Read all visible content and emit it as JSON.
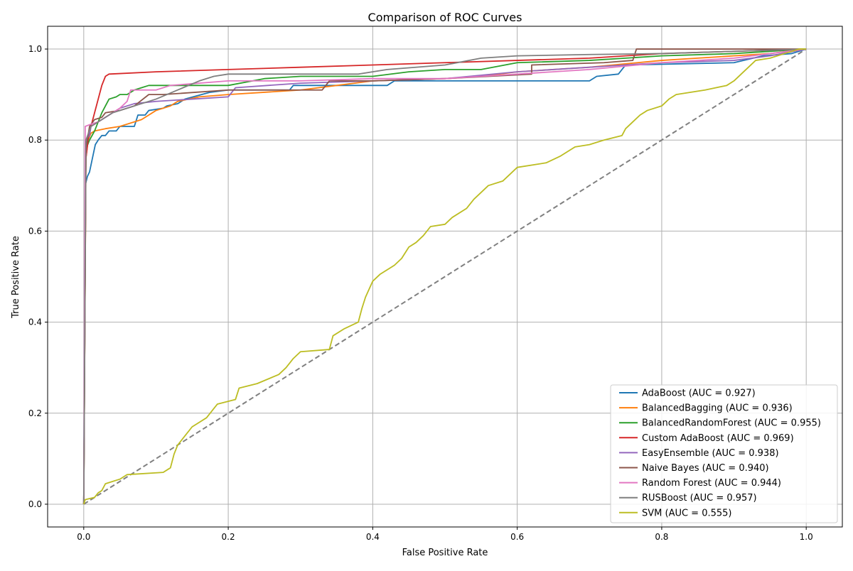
{
  "chart_data": {
    "type": "line",
    "title": "Comparison of ROC Curves",
    "xlabel": "False Positive Rate",
    "ylabel": "True Positive Rate",
    "xlim": [
      -0.05,
      1.05
    ],
    "ylim": [
      -0.05,
      1.05
    ],
    "x_ticks": [
      "0.0",
      "0.2",
      "0.4",
      "0.6",
      "0.8",
      "1.0"
    ],
    "y_ticks": [
      "0.0",
      "0.2",
      "0.4",
      "0.6",
      "0.8",
      "1.0"
    ],
    "grid": true,
    "legend_position": "lower-right",
    "series": [
      {
        "name": "AdaBoost (AUC = 0.927)",
        "color": "#1f77b4",
        "points": [
          [
            0,
            0
          ],
          [
            0.002,
            0.7
          ],
          [
            0.005,
            0.72
          ],
          [
            0.008,
            0.73
          ],
          [
            0.012,
            0.76
          ],
          [
            0.016,
            0.79
          ],
          [
            0.02,
            0.8
          ],
          [
            0.025,
            0.81
          ],
          [
            0.03,
            0.81
          ],
          [
            0.035,
            0.82
          ],
          [
            0.045,
            0.82
          ],
          [
            0.05,
            0.83
          ],
          [
            0.07,
            0.83
          ],
          [
            0.075,
            0.855
          ],
          [
            0.085,
            0.855
          ],
          [
            0.09,
            0.865
          ],
          [
            0.11,
            0.87
          ],
          [
            0.115,
            0.875
          ],
          [
            0.13,
            0.88
          ],
          [
            0.14,
            0.89
          ],
          [
            0.175,
            0.905
          ],
          [
            0.2,
            0.91
          ],
          [
            0.285,
            0.91
          ],
          [
            0.29,
            0.92
          ],
          [
            0.42,
            0.92
          ],
          [
            0.43,
            0.93
          ],
          [
            0.52,
            0.93
          ],
          [
            0.7,
            0.93
          ],
          [
            0.71,
            0.94
          ],
          [
            0.74,
            0.945
          ],
          [
            0.75,
            0.965
          ],
          [
            0.9,
            0.97
          ],
          [
            0.94,
            0.985
          ],
          [
            0.98,
            0.99
          ],
          [
            1,
            1
          ]
        ]
      },
      {
        "name": "BalancedBagging (AUC = 0.936)",
        "color": "#ff7f0e",
        "points": [
          [
            0,
            0
          ],
          [
            0.003,
            0.76
          ],
          [
            0.006,
            0.8
          ],
          [
            0.01,
            0.815
          ],
          [
            0.015,
            0.82
          ],
          [
            0.03,
            0.825
          ],
          [
            0.05,
            0.83
          ],
          [
            0.07,
            0.84
          ],
          [
            0.08,
            0.845
          ],
          [
            0.09,
            0.855
          ],
          [
            0.1,
            0.865
          ],
          [
            0.12,
            0.875
          ],
          [
            0.13,
            0.885
          ],
          [
            0.16,
            0.895
          ],
          [
            0.2,
            0.9
          ],
          [
            0.25,
            0.905
          ],
          [
            0.3,
            0.91
          ],
          [
            0.35,
            0.92
          ],
          [
            0.4,
            0.93
          ],
          [
            0.5,
            0.935
          ],
          [
            0.55,
            0.94
          ],
          [
            0.6,
            0.95
          ],
          [
            0.7,
            0.96
          ],
          [
            0.8,
            0.975
          ],
          [
            0.9,
            0.985
          ],
          [
            0.95,
            0.99
          ],
          [
            1,
            1
          ]
        ]
      },
      {
        "name": "BalancedRandomForest (AUC = 0.955)",
        "color": "#2ca02c",
        "points": [
          [
            0,
            0
          ],
          [
            0.003,
            0.78
          ],
          [
            0.008,
            0.8
          ],
          [
            0.015,
            0.82
          ],
          [
            0.02,
            0.84
          ],
          [
            0.025,
            0.86
          ],
          [
            0.03,
            0.875
          ],
          [
            0.035,
            0.89
          ],
          [
            0.045,
            0.895
          ],
          [
            0.05,
            0.9
          ],
          [
            0.06,
            0.9
          ],
          [
            0.07,
            0.91
          ],
          [
            0.08,
            0.915
          ],
          [
            0.09,
            0.92
          ],
          [
            0.2,
            0.92
          ],
          [
            0.25,
            0.935
          ],
          [
            0.3,
            0.94
          ],
          [
            0.4,
            0.94
          ],
          [
            0.45,
            0.95
          ],
          [
            0.5,
            0.955
          ],
          [
            0.55,
            0.955
          ],
          [
            0.6,
            0.97
          ],
          [
            0.7,
            0.975
          ],
          [
            0.8,
            0.985
          ],
          [
            0.9,
            0.99
          ],
          [
            1,
            1
          ]
        ]
      },
      {
        "name": "Custom AdaBoost (AUC = 0.969)",
        "color": "#d62728",
        "points": [
          [
            0,
            0
          ],
          [
            0.003,
            0.76
          ],
          [
            0.006,
            0.8
          ],
          [
            0.01,
            0.83
          ],
          [
            0.015,
            0.86
          ],
          [
            0.02,
            0.89
          ],
          [
            0.025,
            0.92
          ],
          [
            0.03,
            0.94
          ],
          [
            0.035,
            0.945
          ],
          [
            0.1,
            0.95
          ],
          [
            0.2,
            0.955
          ],
          [
            0.3,
            0.96
          ],
          [
            0.4,
            0.965
          ],
          [
            0.5,
            0.97
          ],
          [
            0.6,
            0.975
          ],
          [
            0.7,
            0.98
          ],
          [
            0.8,
            0.99
          ],
          [
            0.9,
            0.995
          ],
          [
            1,
            1
          ]
        ]
      },
      {
        "name": "EasyEnsemble (AUC = 0.938)",
        "color": "#9467bd",
        "points": [
          [
            0,
            0
          ],
          [
            0.003,
            0.8
          ],
          [
            0.008,
            0.81
          ],
          [
            0.01,
            0.83
          ],
          [
            0.02,
            0.84
          ],
          [
            0.03,
            0.85
          ],
          [
            0.05,
            0.87
          ],
          [
            0.07,
            0.88
          ],
          [
            0.1,
            0.885
          ],
          [
            0.15,
            0.89
          ],
          [
            0.2,
            0.895
          ],
          [
            0.21,
            0.915
          ],
          [
            0.3,
            0.925
          ],
          [
            0.4,
            0.93
          ],
          [
            0.5,
            0.935
          ],
          [
            0.6,
            0.95
          ],
          [
            0.7,
            0.96
          ],
          [
            0.8,
            0.97
          ],
          [
            0.9,
            0.975
          ],
          [
            0.95,
            0.985
          ],
          [
            1,
            1
          ]
        ]
      },
      {
        "name": "Naive Bayes (AUC = 0.940)",
        "color": "#8c564b",
        "points": [
          [
            0,
            0
          ],
          [
            0.003,
            0.78
          ],
          [
            0.008,
            0.83
          ],
          [
            0.015,
            0.845
          ],
          [
            0.025,
            0.85
          ],
          [
            0.03,
            0.86
          ],
          [
            0.05,
            0.865
          ],
          [
            0.07,
            0.875
          ],
          [
            0.09,
            0.9
          ],
          [
            0.11,
            0.9
          ],
          [
            0.2,
            0.91
          ],
          [
            0.33,
            0.91
          ],
          [
            0.34,
            0.93
          ],
          [
            0.4,
            0.93
          ],
          [
            0.5,
            0.935
          ],
          [
            0.62,
            0.945
          ],
          [
            0.62,
            0.965
          ],
          [
            0.72,
            0.97
          ],
          [
            0.76,
            0.975
          ],
          [
            0.765,
            1.0
          ],
          [
            1,
            1
          ]
        ]
      },
      {
        "name": "Random Forest (AUC = 0.944)",
        "color": "#e377c2",
        "points": [
          [
            0,
            0
          ],
          [
            0.002,
            0.83
          ],
          [
            0.01,
            0.835
          ],
          [
            0.02,
            0.84
          ],
          [
            0.03,
            0.85
          ],
          [
            0.04,
            0.86
          ],
          [
            0.05,
            0.87
          ],
          [
            0.06,
            0.885
          ],
          [
            0.065,
            0.91
          ],
          [
            0.1,
            0.91
          ],
          [
            0.12,
            0.92
          ],
          [
            0.2,
            0.93
          ],
          [
            0.3,
            0.93
          ],
          [
            0.4,
            0.935
          ],
          [
            0.5,
            0.935
          ],
          [
            0.6,
            0.945
          ],
          [
            0.7,
            0.955
          ],
          [
            0.8,
            0.97
          ],
          [
            0.9,
            0.98
          ],
          [
            0.95,
            0.99
          ],
          [
            1,
            1
          ]
        ]
      },
      {
        "name": "RUSBoost (AUC = 0.957)",
        "color": "#7f7f7f",
        "points": [
          [
            0,
            0
          ],
          [
            0.003,
            0.8
          ],
          [
            0.01,
            0.83
          ],
          [
            0.02,
            0.84
          ],
          [
            0.04,
            0.86
          ],
          [
            0.06,
            0.87
          ],
          [
            0.08,
            0.88
          ],
          [
            0.1,
            0.89
          ],
          [
            0.13,
            0.91
          ],
          [
            0.16,
            0.93
          ],
          [
            0.18,
            0.94
          ],
          [
            0.2,
            0.945
          ],
          [
            0.3,
            0.945
          ],
          [
            0.38,
            0.945
          ],
          [
            0.42,
            0.955
          ],
          [
            0.5,
            0.965
          ],
          [
            0.55,
            0.98
          ],
          [
            0.6,
            0.985
          ],
          [
            0.7,
            0.988
          ],
          [
            0.8,
            0.99
          ],
          [
            0.9,
            0.995
          ],
          [
            1,
            1
          ]
        ]
      },
      {
        "name": "SVM (AUC = 0.555)",
        "color": "#bcbd22",
        "points": [
          [
            0,
            0
          ],
          [
            0.002,
            0.01
          ],
          [
            0.015,
            0.015
          ],
          [
            0.02,
            0.025
          ],
          [
            0.025,
            0.03
          ],
          [
            0.03,
            0.045
          ],
          [
            0.04,
            0.05
          ],
          [
            0.05,
            0.055
          ],
          [
            0.06,
            0.065
          ],
          [
            0.11,
            0.07
          ],
          [
            0.12,
            0.08
          ],
          [
            0.125,
            0.11
          ],
          [
            0.13,
            0.13
          ],
          [
            0.14,
            0.15
          ],
          [
            0.15,
            0.17
          ],
          [
            0.16,
            0.18
          ],
          [
            0.17,
            0.19
          ],
          [
            0.18,
            0.21
          ],
          [
            0.185,
            0.22
          ],
          [
            0.21,
            0.23
          ],
          [
            0.215,
            0.255
          ],
          [
            0.24,
            0.265
          ],
          [
            0.27,
            0.285
          ],
          [
            0.28,
            0.3
          ],
          [
            0.29,
            0.32
          ],
          [
            0.3,
            0.335
          ],
          [
            0.34,
            0.34
          ],
          [
            0.345,
            0.37
          ],
          [
            0.36,
            0.385
          ],
          [
            0.38,
            0.4
          ],
          [
            0.385,
            0.43
          ],
          [
            0.39,
            0.455
          ],
          [
            0.4,
            0.49
          ],
          [
            0.41,
            0.505
          ],
          [
            0.43,
            0.525
          ],
          [
            0.44,
            0.54
          ],
          [
            0.45,
            0.565
          ],
          [
            0.46,
            0.575
          ],
          [
            0.47,
            0.59
          ],
          [
            0.48,
            0.61
          ],
          [
            0.5,
            0.615
          ],
          [
            0.51,
            0.63
          ],
          [
            0.53,
            0.65
          ],
          [
            0.54,
            0.67
          ],
          [
            0.55,
            0.685
          ],
          [
            0.56,
            0.7
          ],
          [
            0.58,
            0.71
          ],
          [
            0.59,
            0.725
          ],
          [
            0.6,
            0.74
          ],
          [
            0.64,
            0.75
          ],
          [
            0.66,
            0.765
          ],
          [
            0.68,
            0.785
          ],
          [
            0.7,
            0.79
          ],
          [
            0.72,
            0.8
          ],
          [
            0.745,
            0.81
          ],
          [
            0.75,
            0.825
          ],
          [
            0.76,
            0.84
          ],
          [
            0.77,
            0.855
          ],
          [
            0.78,
            0.865
          ],
          [
            0.8,
            0.875
          ],
          [
            0.81,
            0.89
          ],
          [
            0.82,
            0.9
          ],
          [
            0.86,
            0.91
          ],
          [
            0.89,
            0.92
          ],
          [
            0.9,
            0.93
          ],
          [
            0.91,
            0.945
          ],
          [
            0.92,
            0.96
          ],
          [
            0.93,
            0.975
          ],
          [
            0.95,
            0.98
          ],
          [
            0.97,
            0.99
          ],
          [
            0.99,
            1.0
          ],
          [
            1,
            1
          ]
        ]
      }
    ],
    "reference_line": {
      "points": [
        [
          0,
          0
        ],
        [
          1,
          1
        ]
      ],
      "color": "#808080",
      "style": "dashed"
    }
  }
}
